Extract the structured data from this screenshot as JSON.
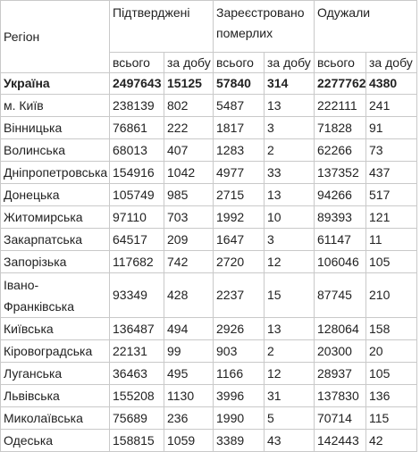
{
  "header": {
    "region": "Регіон",
    "confirmed": "Підтверджені",
    "deaths": "Зареєстровано померлих",
    "recovered": "Одужали",
    "total": "всього",
    "per_day": "за добу"
  },
  "total_row": {
    "region": "Україна",
    "confirmed_total": "2497643",
    "confirmed_day": "15125",
    "deaths_total": "57840",
    "deaths_day": "314",
    "recovered_total": "2277762",
    "recovered_day": "4380"
  },
  "rows": [
    {
      "region": "м. Київ",
      "confirmed_total": "238139",
      "confirmed_day": "802",
      "deaths_total": "5487",
      "deaths_day": "13",
      "recovered_total": "222111",
      "recovered_day": "241"
    },
    {
      "region": "Вінницька",
      "confirmed_total": "76861",
      "confirmed_day": "222",
      "deaths_total": "1817",
      "deaths_day": "3",
      "recovered_total": "71828",
      "recovered_day": "91"
    },
    {
      "region": "Волинська",
      "confirmed_total": "68013",
      "confirmed_day": "407",
      "deaths_total": "1283",
      "deaths_day": "2",
      "recovered_total": "62266",
      "recovered_day": "73"
    },
    {
      "region": "Дніпропетровська",
      "confirmed_total": "154916",
      "confirmed_day": "1042",
      "deaths_total": "4977",
      "deaths_day": "33",
      "recovered_total": "137352",
      "recovered_day": "437"
    },
    {
      "region": "Донецька",
      "confirmed_total": "105749",
      "confirmed_day": "985",
      "deaths_total": "2715",
      "deaths_day": "13",
      "recovered_total": "94266",
      "recovered_day": "517"
    },
    {
      "region": "Житомирська",
      "confirmed_total": "97110",
      "confirmed_day": "703",
      "deaths_total": "1992",
      "deaths_day": "10",
      "recovered_total": "89393",
      "recovered_day": "121"
    },
    {
      "region": "Закарпатська",
      "confirmed_total": "64517",
      "confirmed_day": "209",
      "deaths_total": "1647",
      "deaths_day": "3",
      "recovered_total": "61147",
      "recovered_day": "11"
    },
    {
      "region": "Запорізька",
      "confirmed_total": "117682",
      "confirmed_day": "742",
      "deaths_total": "2720",
      "deaths_day": "12",
      "recovered_total": "106046",
      "recovered_day": "105"
    },
    {
      "region": "Івано-Франківська",
      "confirmed_total": "93349",
      "confirmed_day": "428",
      "deaths_total": "2237",
      "deaths_day": "15",
      "recovered_total": "87745",
      "recovered_day": "210",
      "tall": true
    },
    {
      "region": "Київська",
      "confirmed_total": "136487",
      "confirmed_day": "494",
      "deaths_total": "2926",
      "deaths_day": "13",
      "recovered_total": "128064",
      "recovered_day": "158"
    },
    {
      "region": "Кіровоградська",
      "confirmed_total": "22131",
      "confirmed_day": "99",
      "deaths_total": "903",
      "deaths_day": "2",
      "recovered_total": "20300",
      "recovered_day": "20"
    },
    {
      "region": "Луганська",
      "confirmed_total": "36463",
      "confirmed_day": "495",
      "deaths_total": "1166",
      "deaths_day": "12",
      "recovered_total": "28937",
      "recovered_day": "105"
    },
    {
      "region": "Львівська",
      "confirmed_total": "155208",
      "confirmed_day": "1130",
      "deaths_total": "3996",
      "deaths_day": "31",
      "recovered_total": "137830",
      "recovered_day": "136"
    },
    {
      "region": "Миколаївська",
      "confirmed_total": "75689",
      "confirmed_day": "236",
      "deaths_total": "1990",
      "deaths_day": "5",
      "recovered_total": "70714",
      "recovered_day": "115"
    },
    {
      "region": "Одеська",
      "confirmed_total": "158815",
      "confirmed_day": "1059",
      "deaths_total": "3389",
      "deaths_day": "43",
      "recovered_total": "142443",
      "recovered_day": "42"
    }
  ]
}
